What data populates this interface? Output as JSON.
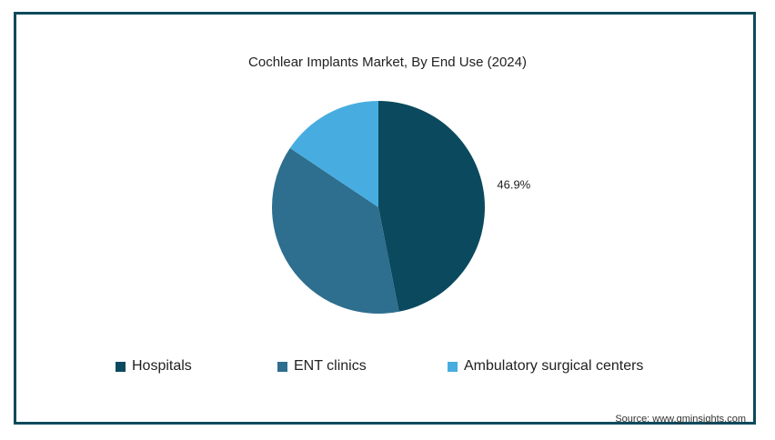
{
  "chart_data": {
    "type": "pie",
    "title": "Cochlear Implants Market, By End Use (2024)",
    "slices": [
      {
        "name": "Hospitals",
        "value": 46.9,
        "label": "46.9%",
        "color": "#0b4a5e"
      },
      {
        "name": "ENT clinics",
        "value": 37.5,
        "label": "",
        "color": "#2e6e8e"
      },
      {
        "name": "Ambulatory surgical centers",
        "value": 15.6,
        "label": "",
        "color": "#47ade0"
      }
    ],
    "legend_position": "bottom"
  },
  "source": "Source: www.gminsights.com"
}
